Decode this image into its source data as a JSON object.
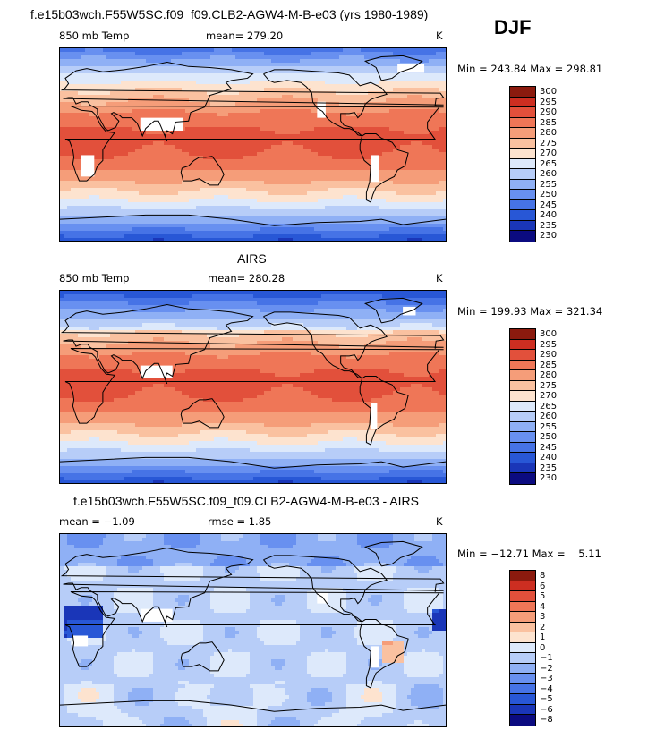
{
  "header": {
    "title": "f.e15b03wch.F55W5SC.f09_f09.CLB2-AGW4-M-B-e03 (yrs 1980-1989)",
    "season": "DJF"
  },
  "colors": {
    "temp_scale": [
      "#0b0b80",
      "#1a36b8",
      "#2857d6",
      "#4673e6",
      "#6890f0",
      "#8fb0f5",
      "#b7cdf8",
      "#dde9fb",
      "#fde3cf",
      "#fac1a0",
      "#f59d79",
      "#ef7657",
      "#e2503b",
      "#cd2e21",
      "#8b1a0e"
    ],
    "diff_scale": [
      "#0b0b80",
      "#1a36b8",
      "#2857d6",
      "#4673e6",
      "#6890f0",
      "#8fb0f5",
      "#b7cdf8",
      "#dde9fb",
      "#fde3cf",
      "#fac1a0",
      "#f59d79",
      "#ef7657",
      "#e2503b",
      "#cd2e21",
      "#8b1a0e"
    ]
  },
  "chart_data": [
    {
      "type": "heatmap",
      "title": "",
      "left_label": "850 mb Temp",
      "mean_label": "mean= 279.20",
      "units": "K",
      "minmax": "Min = 243.84 Max = 298.81",
      "colorbar_ticks": [
        "300",
        "295",
        "290",
        "285",
        "280",
        "275",
        "270",
        "265",
        "260",
        "255",
        "250",
        "245",
        "240",
        "235",
        "230"
      ],
      "mean": 279.2,
      "min": 243.84,
      "max": 298.81
    },
    {
      "type": "heatmap",
      "title": "AIRS",
      "left_label": "850 mb Temp",
      "mean_label": "mean= 280.28",
      "units": "K",
      "minmax": "Min = 199.93 Max = 321.34",
      "colorbar_ticks": [
        "300",
        "295",
        "290",
        "285",
        "280",
        "275",
        "270",
        "265",
        "260",
        "255",
        "250",
        "245",
        "240",
        "235",
        "230"
      ],
      "mean": 280.28,
      "min": 199.93,
      "max": 321.34
    },
    {
      "type": "heatmap",
      "title": "f.e15b03wch.F55W5SC.f09_f09.CLB2-AGW4-M-B-e03 - AIRS",
      "left_label": "mean = −1.09",
      "mean_label": "rmse =    1.85",
      "units": "K",
      "minmax": "Min = −12.71 Max =    5.11",
      "colorbar_ticks": [
        "8",
        "6",
        "5",
        "4",
        "3",
        "2",
        "1",
        "0",
        "−1",
        "−2",
        "−3",
        "−4",
        "−5",
        "−6",
        "−8"
      ],
      "mean": -1.09,
      "rmse": 1.85,
      "min": -12.71,
      "max": 5.11
    }
  ]
}
